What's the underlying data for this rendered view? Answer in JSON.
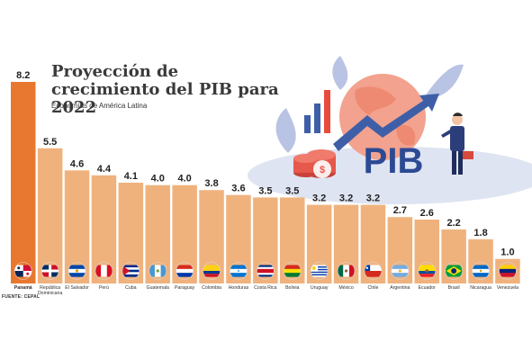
{
  "header": {
    "title": "Proyección de crecimiento del PIB para 2022",
    "subtitle": "Economías de América Latina"
  },
  "illustration": {
    "label": "PIB"
  },
  "source": "FUENTE: CEPAL",
  "colors": {
    "bar": "#f0b27d",
    "highlight": "#e8782f",
    "globe": "#f2a28e",
    "arrow": "#3e5fa8"
  },
  "chart_data": {
    "type": "bar",
    "categories": [
      "Panamá",
      "República Dominicana",
      "El Salvador",
      "Perú",
      "Cuba",
      "Guatemala",
      "Paraguay",
      "Colombia",
      "Honduras",
      "Costa Rica",
      "Bolivia",
      "Uruguay",
      "México",
      "Chile",
      "Argentina",
      "Ecuador",
      "Brasil",
      "Nicaragua",
      "Venezuela"
    ],
    "values": [
      8.2,
      5.5,
      4.6,
      4.4,
      4.1,
      4.0,
      4.0,
      3.8,
      3.6,
      3.5,
      3.5,
      3.2,
      3.2,
      3.2,
      2.7,
      2.6,
      2.2,
      1.8,
      1.0
    ],
    "value_labels": [
      "8.2",
      "5.5",
      "4.6",
      "4.4",
      "4.1",
      "4.0",
      "4.0",
      "3.8",
      "3.6",
      "3.5",
      "3.5",
      "3.2",
      "3.2",
      "3.2",
      "2.7",
      "2.6",
      "2.2",
      "1.8",
      "1.0"
    ],
    "flags": [
      "panama",
      "dominican-republic",
      "el-salvador",
      "peru",
      "cuba",
      "guatemala",
      "paraguay",
      "colombia",
      "honduras",
      "costa-rica",
      "bolivia",
      "uruguay",
      "mexico",
      "chile",
      "argentina",
      "ecuador",
      "brazil",
      "nicaragua",
      "venezuela"
    ],
    "highlight_index": 0,
    "title": "Proyección de crecimiento del PIB para 2022",
    "ylim": [
      0,
      8.2
    ],
    "grid": false
  }
}
